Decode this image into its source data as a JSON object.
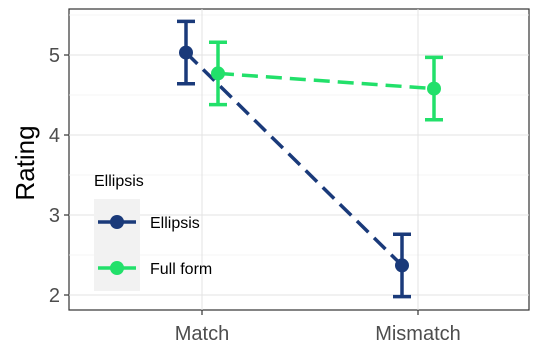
{
  "chart_data": {
    "type": "line",
    "title": "",
    "xlabel": "",
    "ylabel": "Rating",
    "categories": [
      "Match",
      "Mismatch"
    ],
    "ylim": [
      1.8,
      5.6
    ],
    "yticks": [
      2,
      3,
      4,
      5
    ],
    "grid": true,
    "legend": {
      "title": "Ellipsis",
      "placement": "left-inside"
    },
    "series": [
      {
        "name": "Ellipsis",
        "color": "#1a3a7a",
        "values": [
          5.03,
          2.37
        ],
        "error_low": [
          4.64,
          1.98
        ],
        "error_high": [
          5.42,
          2.76
        ]
      },
      {
        "name": "Full form",
        "color": "#22e06a",
        "values": [
          4.77,
          4.58
        ],
        "error_low": [
          4.38,
          4.19
        ],
        "error_high": [
          5.16,
          4.97
        ]
      }
    ]
  }
}
